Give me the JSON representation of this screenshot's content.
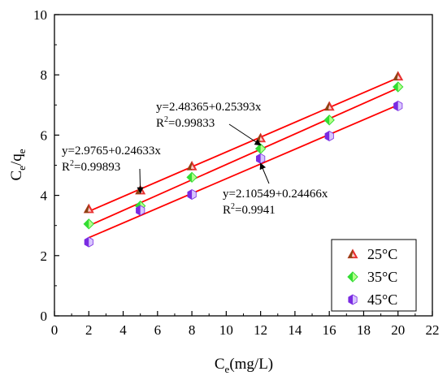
{
  "chart_data": {
    "type": "scatter",
    "xlabel": {
      "main": "C",
      "sub": "e",
      "rest": "(mg/L)"
    },
    "ylabel": {
      "main": "C",
      "sub1": "e",
      "slash": "/q",
      "sub2": "e"
    },
    "xlim": [
      0,
      22
    ],
    "ylim": [
      0,
      10
    ],
    "xticks": [
      "0",
      "2",
      "4",
      "6",
      "8",
      "10",
      "12",
      "14",
      "16",
      "18",
      "20",
      "22"
    ],
    "yticks": [
      "0",
      "2",
      "4",
      "6",
      "8",
      "10"
    ],
    "grid": false,
    "legend_position": "bottom-right",
    "series": [
      {
        "name": "25°C",
        "marker": "triangle",
        "marker_colors": [
          "#e83030",
          "#8b4513"
        ],
        "line_color": "#ff0000",
        "fit": {
          "intercept": 2.9765,
          "slope": 0.24633
        },
        "points": [
          {
            "x": 2,
            "y": 3.55
          },
          {
            "x": 5,
            "y": 4.17
          },
          {
            "x": 8,
            "y": 4.97
          },
          {
            "x": 12,
            "y": 5.9
          },
          {
            "x": 16,
            "y": 6.95
          },
          {
            "x": 20,
            "y": 7.95
          }
        ]
      },
      {
        "name": "35°C",
        "marker": "diamond",
        "marker_colors": [
          "#33dd33",
          "#b6ff8a"
        ],
        "line_color": "#ff0000",
        "fit": {
          "intercept": 2.48365,
          "slope": 0.25393
        },
        "points": [
          {
            "x": 2,
            "y": 3.05
          },
          {
            "x": 5,
            "y": 3.65
          },
          {
            "x": 8,
            "y": 4.6
          },
          {
            "x": 12,
            "y": 5.55
          },
          {
            "x": 16,
            "y": 6.5
          },
          {
            "x": 20,
            "y": 7.6
          }
        ]
      },
      {
        "name": "45°C",
        "marker": "hexagon",
        "marker_colors": [
          "#7a2be2",
          "#d8c6ff"
        ],
        "line_color": "#ff0000",
        "fit": {
          "intercept": 2.10549,
          "slope": 0.24466
        },
        "points": [
          {
            "x": 2,
            "y": 2.45
          },
          {
            "x": 5,
            "y": 3.5
          },
          {
            "x": 8,
            "y": 4.03
          },
          {
            "x": 12,
            "y": 5.22
          },
          {
            "x": 16,
            "y": 5.97
          },
          {
            "x": 20,
            "y": 6.97
          }
        ]
      }
    ],
    "annotations": [
      {
        "eq": "y=2.9765+0.24633x",
        "r2_label": "R",
        "r2_sup": "2",
        "r2_value": "=0.99893",
        "target": {
          "x": 5,
          "y": 4.08
        }
      },
      {
        "eq": "y=2.48365+0.25393x",
        "r2_label": "R",
        "r2_sup": "2",
        "r2_value": "=0.99833",
        "target": {
          "x": 12,
          "y": 5.67
        }
      },
      {
        "eq": "y=2.10549+0.24466x",
        "r2_label": "R",
        "r2_sup": "2",
        "r2_value": "=0.9941",
        "target": {
          "x": 12,
          "y": 5.06
        }
      }
    ]
  }
}
